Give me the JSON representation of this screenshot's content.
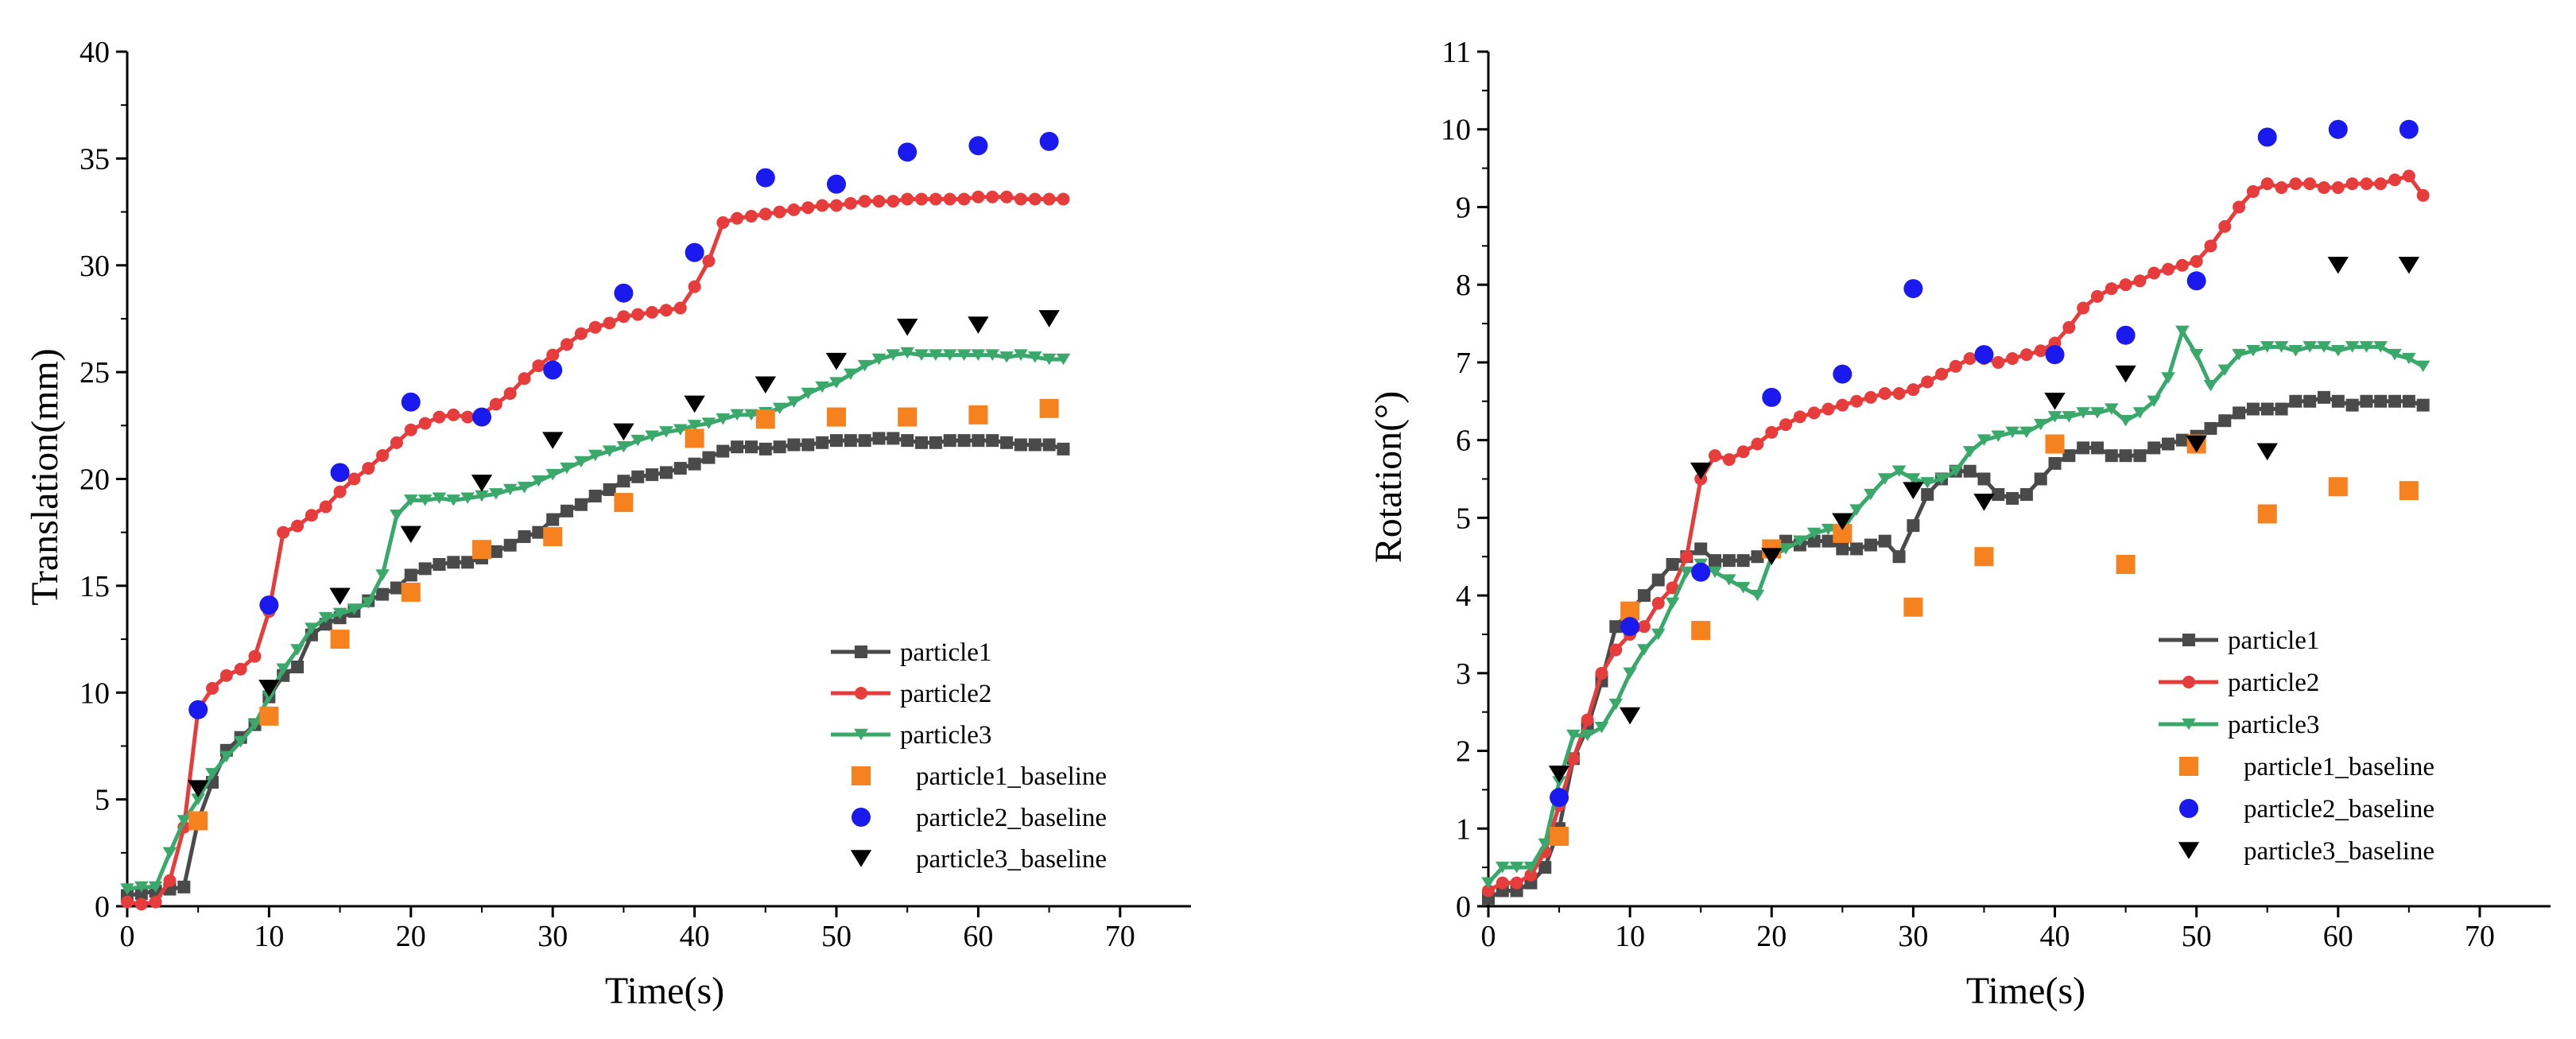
{
  "chart_data": [
    {
      "type": "line",
      "xlabel": "Time(s)",
      "ylabel": "Translation(mm)",
      "xlim": [
        0,
        75
      ],
      "ylim": [
        0,
        40
      ],
      "xticks": [
        0,
        10,
        20,
        30,
        40,
        50,
        60,
        70
      ],
      "yticks": [
        0,
        5,
        10,
        15,
        20,
        25,
        30,
        35,
        40
      ],
      "legend_position": "bottom-right",
      "series": [
        {
          "name": "particle1",
          "color": "#4a4a4a",
          "marker": "square",
          "style": "line",
          "x": [
            0,
            1,
            2,
            3,
            4,
            5,
            6,
            7,
            8,
            9,
            10,
            11,
            12,
            13,
            14,
            15,
            16,
            17,
            18,
            19,
            20,
            21,
            22,
            23,
            24,
            25,
            26,
            27,
            28,
            29,
            30,
            31,
            32,
            33,
            34,
            35,
            36,
            37,
            38,
            39,
            40,
            41,
            42,
            43,
            44,
            45,
            46,
            47,
            48,
            49,
            50,
            51,
            52,
            53,
            54,
            55,
            56,
            57,
            58,
            59,
            60,
            61,
            62,
            63,
            64,
            65,
            66
          ],
          "y": [
            0.5,
            0.6,
            0.7,
            0.8,
            0.9,
            4.0,
            5.8,
            7.3,
            7.9,
            8.5,
            9.8,
            10.8,
            11.2,
            12.7,
            13.2,
            13.5,
            13.8,
            14.3,
            14.6,
            14.9,
            15.5,
            15.8,
            16.0,
            16.1,
            16.1,
            16.3,
            16.6,
            16.9,
            17.3,
            17.5,
            18.1,
            18.5,
            18.8,
            19.2,
            19.5,
            19.9,
            20.1,
            20.2,
            20.3,
            20.5,
            20.7,
            21.0,
            21.3,
            21.5,
            21.5,
            21.4,
            21.5,
            21.6,
            21.6,
            21.7,
            21.8,
            21.8,
            21.8,
            21.9,
            21.9,
            21.8,
            21.7,
            21.7,
            21.8,
            21.8,
            21.8,
            21.8,
            21.7,
            21.6,
            21.6,
            21.6,
            21.4
          ]
        },
        {
          "name": "particle2",
          "color": "#e63c3c",
          "marker": "circle",
          "style": "line",
          "x": [
            0,
            1,
            2,
            3,
            4,
            5,
            6,
            7,
            8,
            9,
            10,
            11,
            12,
            13,
            14,
            15,
            16,
            17,
            18,
            19,
            20,
            21,
            22,
            23,
            24,
            25,
            26,
            27,
            28,
            29,
            30,
            31,
            32,
            33,
            34,
            35,
            36,
            37,
            38,
            39,
            40,
            41,
            42,
            43,
            44,
            45,
            46,
            47,
            48,
            49,
            50,
            51,
            52,
            53,
            54,
            55,
            56,
            57,
            58,
            59,
            60,
            61,
            62,
            63,
            64,
            65,
            66
          ],
          "y": [
            0.2,
            0.1,
            0.2,
            1.2,
            3.7,
            9.2,
            10.2,
            10.8,
            11.1,
            11.7,
            13.8,
            17.5,
            17.8,
            18.3,
            18.7,
            19.4,
            20.0,
            20.5,
            21.1,
            21.7,
            22.3,
            22.6,
            22.9,
            23.0,
            22.9,
            23.0,
            23.5,
            24.0,
            24.7,
            25.3,
            25.8,
            26.3,
            26.8,
            27.1,
            27.3,
            27.6,
            27.7,
            27.8,
            27.9,
            28.0,
            29.0,
            30.2,
            32.0,
            32.2,
            32.3,
            32.4,
            32.5,
            32.6,
            32.7,
            32.8,
            32.8,
            32.9,
            33.0,
            33.0,
            33.0,
            33.1,
            33.1,
            33.1,
            33.1,
            33.1,
            33.2,
            33.2,
            33.2,
            33.1,
            33.1,
            33.1,
            33.1
          ]
        },
        {
          "name": "particle3",
          "color": "#3aa86a",
          "marker": "triangle-down",
          "style": "line",
          "x": [
            0,
            1,
            2,
            3,
            4,
            5,
            6,
            7,
            8,
            9,
            10,
            11,
            12,
            13,
            14,
            15,
            16,
            17,
            18,
            19,
            20,
            21,
            22,
            23,
            24,
            25,
            26,
            27,
            28,
            29,
            30,
            31,
            32,
            33,
            34,
            35,
            36,
            37,
            38,
            39,
            40,
            41,
            42,
            43,
            44,
            45,
            46,
            47,
            48,
            49,
            50,
            51,
            52,
            53,
            54,
            55,
            56,
            57,
            58,
            59,
            60,
            61,
            62,
            63,
            64,
            65,
            66
          ],
          "y": [
            0.8,
            0.9,
            0.9,
            2.5,
            4.0,
            5.0,
            6.2,
            7.0,
            7.7,
            8.5,
            9.8,
            11.1,
            12.0,
            13.0,
            13.5,
            13.7,
            13.9,
            14.2,
            15.5,
            18.3,
            19.0,
            19.0,
            19.1,
            19.0,
            19.1,
            19.2,
            19.3,
            19.5,
            19.6,
            19.9,
            20.2,
            20.5,
            20.8,
            21.1,
            21.3,
            21.5,
            21.8,
            22.0,
            22.2,
            22.3,
            22.5,
            22.6,
            22.8,
            23.0,
            23.0,
            23.1,
            23.3,
            23.6,
            24.0,
            24.3,
            24.5,
            24.9,
            25.3,
            25.6,
            25.8,
            25.9,
            25.8,
            25.8,
            25.8,
            25.8,
            25.8,
            25.8,
            25.7,
            25.8,
            25.7,
            25.6,
            25.6
          ]
        },
        {
          "name": "particle1_baseline",
          "color": "#f5821f",
          "marker": "square",
          "style": "scatter",
          "x": [
            5,
            10,
            15,
            20,
            25,
            30,
            35,
            40,
            45,
            50,
            55,
            60,
            65
          ],
          "y": [
            4.0,
            8.9,
            12.5,
            14.7,
            16.7,
            17.3,
            18.9,
            21.9,
            22.8,
            22.9,
            22.9,
            23.0,
            23.3
          ]
        },
        {
          "name": "particle2_baseline",
          "color": "#1a1aee",
          "marker": "circle",
          "style": "scatter",
          "x": [
            5,
            10,
            15,
            20,
            25,
            30,
            35,
            40,
            45,
            50,
            55,
            60,
            65
          ],
          "y": [
            9.2,
            14.1,
            20.3,
            23.6,
            22.9,
            25.1,
            28.7,
            30.6,
            34.1,
            33.8,
            35.3,
            35.6,
            35.8
          ]
        },
        {
          "name": "particle3_baseline",
          "color": "#000000",
          "marker": "triangle-down",
          "style": "scatter",
          "x": [
            5,
            10,
            15,
            20,
            25,
            30,
            35,
            40,
            45,
            50,
            55,
            60,
            65
          ],
          "y": [
            5.5,
            10.2,
            14.5,
            17.4,
            19.8,
            21.8,
            22.2,
            23.5,
            24.4,
            25.5,
            27.1,
            27.2,
            27.5
          ]
        }
      ]
    },
    {
      "type": "line",
      "xlabel": "Time(s)",
      "ylabel": "Rotation(°)",
      "xlim": [
        0,
        75
      ],
      "ylim": [
        0,
        11
      ],
      "xticks": [
        0,
        10,
        20,
        30,
        40,
        50,
        60,
        70
      ],
      "yticks": [
        0,
        1,
        2,
        3,
        4,
        5,
        6,
        7,
        8,
        9,
        10,
        11
      ],
      "legend_position": "bottom-right",
      "series": [
        {
          "name": "particle1",
          "color": "#4a4a4a",
          "marker": "square",
          "style": "line",
          "x": [
            0,
            1,
            2,
            3,
            4,
            5,
            6,
            7,
            8,
            9,
            10,
            11,
            12,
            13,
            14,
            15,
            16,
            17,
            18,
            19,
            20,
            21,
            22,
            23,
            24,
            25,
            26,
            27,
            28,
            29,
            30,
            31,
            32,
            33,
            34,
            35,
            36,
            37,
            38,
            39,
            40,
            41,
            42,
            43,
            44,
            45,
            46,
            47,
            48,
            49,
            50,
            51,
            52,
            53,
            54,
            55,
            56,
            57,
            58,
            59,
            60,
            61,
            62,
            63,
            64,
            65,
            66
          ],
          "y": [
            0.1,
            0.2,
            0.2,
            0.3,
            0.5,
            1.0,
            1.9,
            2.3,
            2.9,
            3.6,
            3.8,
            4.0,
            4.2,
            4.4,
            4.5,
            4.6,
            4.45,
            4.45,
            4.45,
            4.5,
            4.6,
            4.7,
            4.65,
            4.7,
            4.7,
            4.6,
            4.6,
            4.65,
            4.7,
            4.5,
            4.9,
            5.3,
            5.5,
            5.6,
            5.6,
            5.5,
            5.3,
            5.25,
            5.3,
            5.5,
            5.7,
            5.8,
            5.9,
            5.9,
            5.8,
            5.8,
            5.8,
            5.9,
            5.95,
            6.0,
            6.05,
            6.15,
            6.25,
            6.35,
            6.4,
            6.4,
            6.4,
            6.5,
            6.5,
            6.55,
            6.5,
            6.45,
            6.5,
            6.5,
            6.5,
            6.5,
            6.45
          ]
        },
        {
          "name": "particle2",
          "color": "#e63c3c",
          "marker": "circle",
          "style": "line",
          "x": [
            0,
            1,
            2,
            3,
            4,
            5,
            6,
            7,
            8,
            9,
            10,
            11,
            12,
            13,
            14,
            15,
            16,
            17,
            18,
            19,
            20,
            21,
            22,
            23,
            24,
            25,
            26,
            27,
            28,
            29,
            30,
            31,
            32,
            33,
            34,
            35,
            36,
            37,
            38,
            39,
            40,
            41,
            42,
            43,
            44,
            45,
            46,
            47,
            48,
            49,
            50,
            51,
            52,
            53,
            54,
            55,
            56,
            57,
            58,
            59,
            60,
            61,
            62,
            63,
            64,
            65,
            66
          ],
          "y": [
            0.2,
            0.3,
            0.3,
            0.4,
            0.7,
            1.3,
            1.9,
            2.4,
            3.0,
            3.3,
            3.5,
            3.6,
            3.9,
            4.1,
            4.5,
            5.5,
            5.8,
            5.75,
            5.85,
            5.95,
            6.1,
            6.2,
            6.3,
            6.35,
            6.4,
            6.45,
            6.5,
            6.55,
            6.6,
            6.6,
            6.65,
            6.75,
            6.85,
            6.95,
            7.05,
            7.05,
            7.0,
            7.05,
            7.1,
            7.15,
            7.25,
            7.45,
            7.7,
            7.85,
            7.95,
            8.0,
            8.05,
            8.15,
            8.2,
            8.25,
            8.3,
            8.5,
            8.75,
            9.0,
            9.2,
            9.3,
            9.25,
            9.3,
            9.3,
            9.25,
            9.25,
            9.3,
            9.3,
            9.3,
            9.35,
            9.4,
            9.15
          ]
        },
        {
          "name": "particle3",
          "color": "#3aa86a",
          "marker": "triangle-down",
          "style": "line",
          "x": [
            0,
            1,
            2,
            3,
            4,
            5,
            6,
            7,
            8,
            9,
            10,
            11,
            12,
            13,
            14,
            15,
            16,
            17,
            18,
            19,
            20,
            21,
            22,
            23,
            24,
            25,
            26,
            27,
            28,
            29,
            30,
            31,
            32,
            33,
            34,
            35,
            36,
            37,
            38,
            39,
            40,
            41,
            42,
            43,
            44,
            45,
            46,
            47,
            48,
            49,
            50,
            51,
            52,
            53,
            54,
            55,
            56,
            57,
            58,
            59,
            60,
            61,
            62,
            63,
            64,
            65,
            66
          ],
          "y": [
            0.3,
            0.5,
            0.5,
            0.5,
            0.8,
            1.6,
            2.2,
            2.2,
            2.3,
            2.6,
            3.0,
            3.3,
            3.5,
            3.9,
            4.3,
            4.4,
            4.3,
            4.2,
            4.1,
            4.0,
            4.5,
            4.6,
            4.7,
            4.8,
            4.85,
            4.85,
            5.1,
            5.3,
            5.5,
            5.6,
            5.5,
            5.45,
            5.5,
            5.6,
            5.85,
            6.0,
            6.05,
            6.1,
            6.1,
            6.2,
            6.3,
            6.3,
            6.35,
            6.35,
            6.4,
            6.25,
            6.35,
            6.5,
            6.8,
            7.4,
            7.1,
            6.7,
            6.9,
            7.1,
            7.15,
            7.2,
            7.2,
            7.15,
            7.2,
            7.2,
            7.15,
            7.2,
            7.2,
            7.2,
            7.1,
            7.05,
            6.95
          ]
        },
        {
          "name": "particle1_baseline",
          "color": "#f5821f",
          "marker": "square",
          "style": "scatter",
          "x": [
            5,
            10,
            15,
            20,
            25,
            30,
            35,
            40,
            45,
            50,
            55,
            60,
            65
          ],
          "y": [
            0.9,
            3.8,
            3.55,
            4.6,
            4.8,
            3.85,
            4.5,
            5.95,
            4.4,
            5.95,
            5.05,
            5.4,
            5.35
          ]
        },
        {
          "name": "particle2_baseline",
          "color": "#1a1aee",
          "marker": "circle",
          "style": "scatter",
          "x": [
            5,
            10,
            15,
            20,
            25,
            30,
            35,
            40,
            45,
            50,
            55,
            60,
            65
          ],
          "y": [
            1.4,
            3.6,
            4.3,
            6.55,
            6.85,
            7.95,
            7.1,
            7.1,
            7.35,
            8.05,
            9.9,
            10.0,
            10.0
          ]
        },
        {
          "name": "particle3_baseline",
          "color": "#000000",
          "marker": "triangle-down",
          "style": "scatter",
          "x": [
            5,
            10,
            15,
            20,
            25,
            30,
            35,
            40,
            45,
            50,
            55,
            60,
            65
          ],
          "y": [
            1.7,
            2.45,
            5.6,
            4.5,
            4.95,
            5.35,
            5.2,
            6.5,
            6.85,
            5.95,
            5.85,
            8.25,
            8.25
          ]
        }
      ]
    }
  ]
}
